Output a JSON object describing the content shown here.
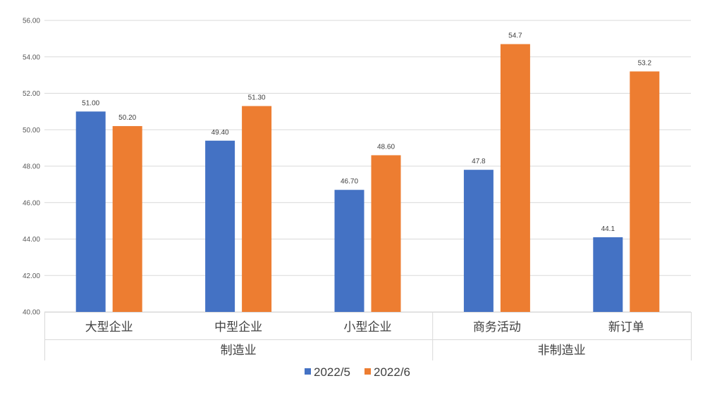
{
  "chart_data": {
    "type": "bar",
    "title": "",
    "xlabel": "",
    "ylabel": "",
    "ylim": [
      40,
      56
    ],
    "yticks": [
      "40.00",
      "42.00",
      "44.00",
      "46.00",
      "48.00",
      "50.00",
      "52.00",
      "54.00",
      "56.00"
    ],
    "grid": true,
    "legend_position": "bottom",
    "groups": [
      {
        "label": "制造业",
        "categories": [
          "大型企业",
          "中型企业",
          "小型企业"
        ]
      },
      {
        "label": "非制造业",
        "categories": [
          "商务活动",
          "新订单"
        ]
      }
    ],
    "categories": [
      "大型企业",
      "中型企业",
      "小型企业",
      "商务活动",
      "新订单"
    ],
    "series": [
      {
        "name": "2022/5",
        "color": "#4472C4",
        "values": [
          51.0,
          49.4,
          46.7,
          47.8,
          44.1
        ],
        "labels": [
          "51.00",
          "49.40",
          "46.70",
          "47.8",
          "44.1"
        ]
      },
      {
        "name": "2022/6",
        "color": "#ED7D31",
        "values": [
          50.2,
          51.3,
          48.6,
          54.7,
          53.2
        ],
        "labels": [
          "50.20",
          "51.30",
          "48.60",
          "54.7",
          "53.2"
        ]
      }
    ]
  }
}
